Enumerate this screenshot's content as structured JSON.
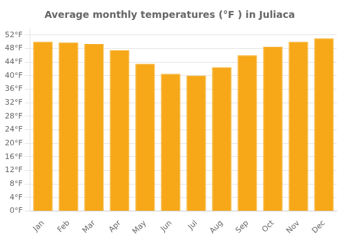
{
  "chart_data": {
    "type": "bar",
    "title": "Average monthly temperatures (°F ) in Juliaca",
    "categories": [
      "Jan",
      "Feb",
      "Mar",
      "Apr",
      "May",
      "Jun",
      "Jul",
      "Aug",
      "Sep",
      "Oct",
      "Nov",
      "Dec"
    ],
    "values": [
      50.0,
      49.8,
      49.3,
      47.5,
      43.5,
      40.5,
      40.0,
      42.5,
      46.0,
      48.5,
      50.0,
      51.0
    ],
    "color": "#F6A818",
    "ylim": [
      0,
      54
    ],
    "yticks": [
      {
        "value": 0,
        "label": "0°F"
      },
      {
        "value": 4,
        "label": "4°F"
      },
      {
        "value": 8,
        "label": "8°F"
      },
      {
        "value": 12,
        "label": "12°F"
      },
      {
        "value": 16,
        "label": "16°F"
      },
      {
        "value": 20,
        "label": "20°F"
      },
      {
        "value": 24,
        "label": "24°F"
      },
      {
        "value": 28,
        "label": "28°F"
      },
      {
        "value": 32,
        "label": "32°F"
      },
      {
        "value": 36,
        "label": "36°F"
      },
      {
        "value": 40,
        "label": "40°F"
      },
      {
        "value": 44,
        "label": "44°F"
      },
      {
        "value": 48,
        "label": "48°F"
      },
      {
        "value": 52,
        "label": "52°F"
      }
    ],
    "grid": true
  }
}
